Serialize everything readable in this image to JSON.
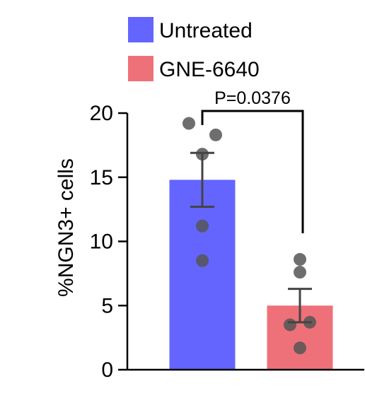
{
  "chart_data": {
    "type": "bar",
    "categories": [
      "Untreated",
      "GNE-6640"
    ],
    "series": [
      {
        "name": "Untreated",
        "color": "#6464ff",
        "mean": 14.8,
        "error_low": 12.7,
        "error_high": 16.9,
        "points": [
          19.2,
          18.3,
          16.8,
          11.2,
          8.5
        ]
      },
      {
        "name": "GNE-6640",
        "color": "#ee7179",
        "mean": 5.0,
        "error_low": 3.7,
        "error_high": 6.3,
        "points": [
          8.6,
          7.6,
          3.7,
          3.5,
          1.7
        ]
      }
    ],
    "title": "",
    "xlabel": "",
    "ylabel": "%NGN3+ cells",
    "ylim": [
      0,
      20
    ],
    "yticks": [
      0,
      5,
      10,
      15,
      20
    ],
    "annotation": "P=0.0376",
    "legend_position": "top-left",
    "grid": false
  }
}
